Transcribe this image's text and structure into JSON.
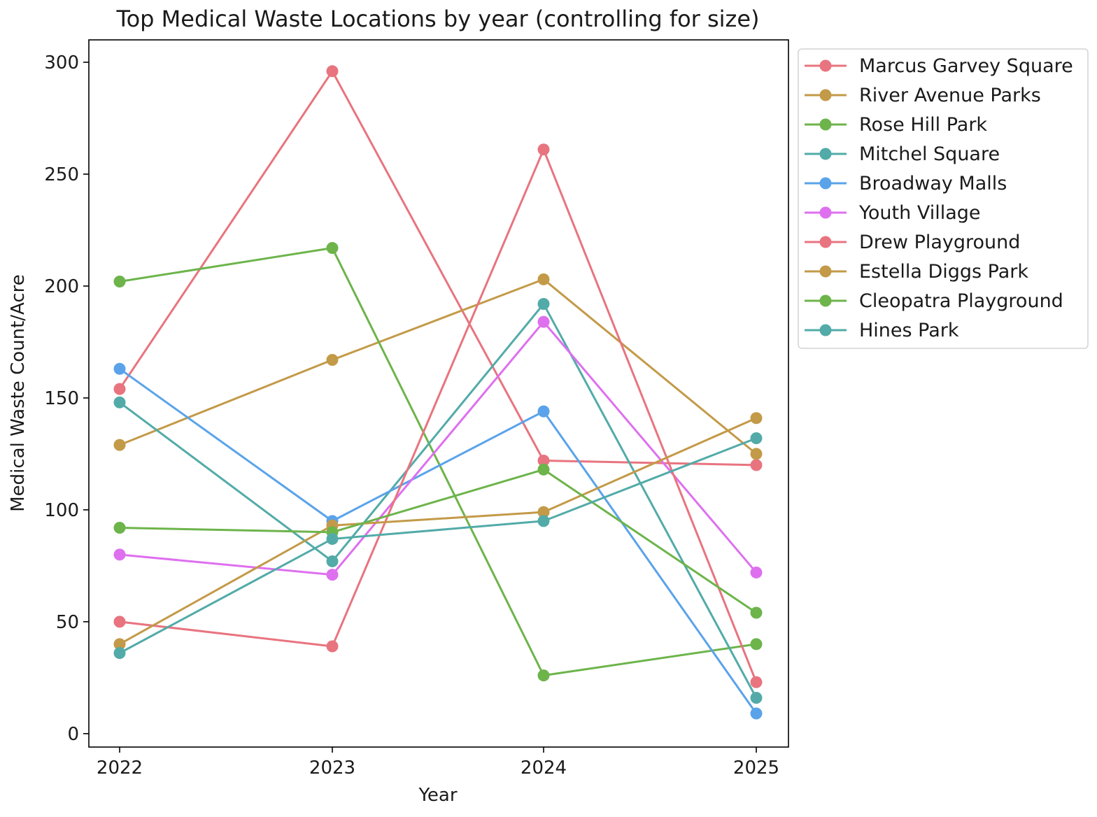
{
  "chart_data": {
    "type": "line",
    "title": "Top Medical Waste Locations by year (controlling for size)",
    "xlabel": "Year",
    "ylabel": "Medical Waste Count/Acre",
    "x": [
      2022,
      2023,
      2024,
      2025
    ],
    "x_tick_labels": [
      "2022",
      "2023",
      "2024",
      "2025"
    ],
    "ylim": [
      -6,
      310
    ],
    "y_ticks": [
      0,
      50,
      100,
      150,
      200,
      250,
      300
    ],
    "y_tick_labels": [
      "0",
      "50",
      "100",
      "150",
      "200",
      "250",
      "300"
    ],
    "grid": false,
    "legend_position": "outside-top-right",
    "series": [
      {
        "name": "Marcus Garvey Square",
        "color": "#e8747f",
        "values": [
          154,
          296,
          122,
          120
        ]
      },
      {
        "name": "River Avenue Parks",
        "color": "#c39a48",
        "values": [
          129,
          167,
          203,
          125
        ]
      },
      {
        "name": "Rose Hill Park",
        "color": "#6db44b",
        "values": [
          202,
          217,
          26,
          40
        ]
      },
      {
        "name": "Mitchel Square",
        "color": "#52aba8",
        "values": [
          148,
          77,
          192,
          16
        ]
      },
      {
        "name": "Broadway Malls",
        "color": "#5aa3ea",
        "values": [
          163,
          95,
          144,
          9
        ]
      },
      {
        "name": "Youth Village",
        "color": "#de70ef",
        "values": [
          80,
          71,
          184,
          72
        ]
      },
      {
        "name": "Drew Playground",
        "color": "#e8747f",
        "values": [
          50,
          39,
          261,
          23
        ]
      },
      {
        "name": "Estella Diggs Park",
        "color": "#c39a48",
        "values": [
          40,
          93,
          99,
          141
        ]
      },
      {
        "name": "Cleopatra Playground",
        "color": "#6db44b",
        "values": [
          92,
          90,
          118,
          54
        ]
      },
      {
        "name": "Hines Park",
        "color": "#52aba8",
        "values": [
          36,
          87,
          95,
          132
        ]
      }
    ]
  }
}
